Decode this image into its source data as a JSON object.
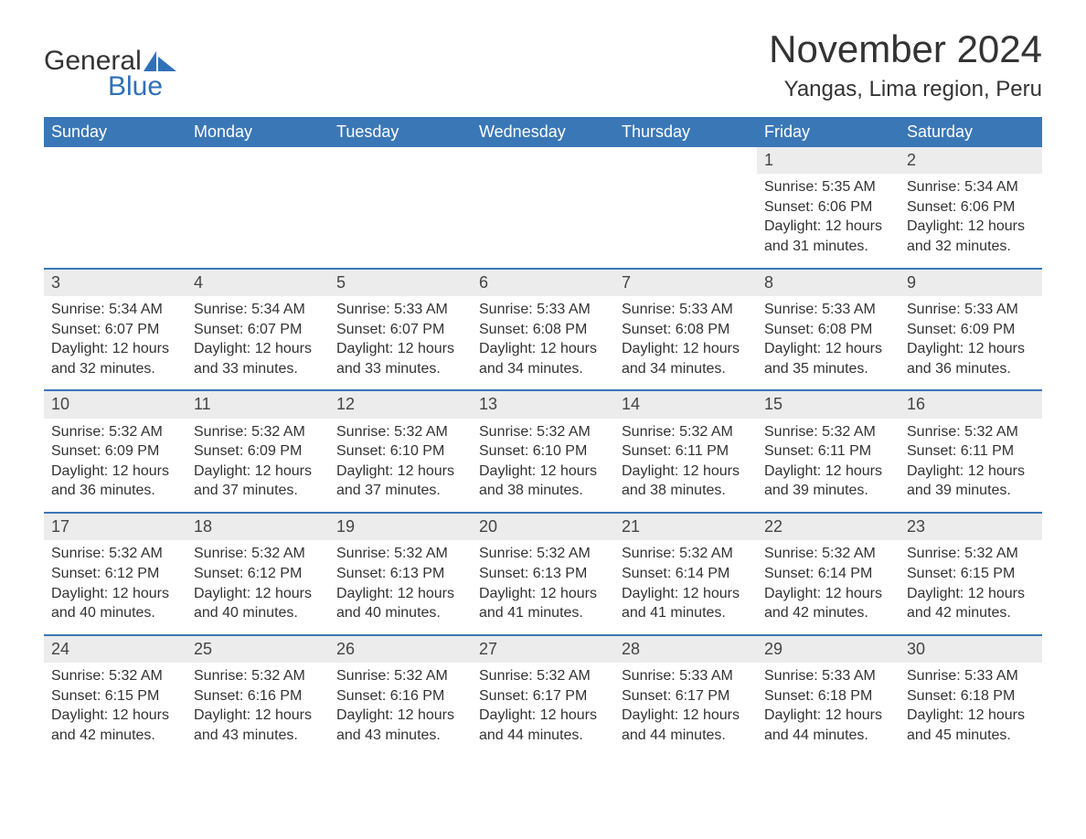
{
  "brand": {
    "word1": "General",
    "word2": "Blue",
    "accent_color": "#2f71b8"
  },
  "header": {
    "month_title": "November 2024",
    "location": "Yangas, Lima region, Peru"
  },
  "calendar": {
    "header_bg": "#3a77b7",
    "header_text_color": "#ffffff",
    "week_border_color": "#3a77b7",
    "daynum_bg": "#ececec",
    "text_color": "#333333",
    "background_color": "#ffffff",
    "weekday_fontsize": 18,
    "body_fontsize": 16,
    "weekdays": [
      "Sunday",
      "Monday",
      "Tuesday",
      "Wednesday",
      "Thursday",
      "Friday",
      "Saturday"
    ],
    "weeks": [
      [
        null,
        null,
        null,
        null,
        null,
        {
          "day": "1",
          "sunrise": "Sunrise: 5:35 AM",
          "sunset": "Sunset: 6:06 PM",
          "daylight1": "Daylight: 12 hours",
          "daylight2": "and 31 minutes."
        },
        {
          "day": "2",
          "sunrise": "Sunrise: 5:34 AM",
          "sunset": "Sunset: 6:06 PM",
          "daylight1": "Daylight: 12 hours",
          "daylight2": "and 32 minutes."
        }
      ],
      [
        {
          "day": "3",
          "sunrise": "Sunrise: 5:34 AM",
          "sunset": "Sunset: 6:07 PM",
          "daylight1": "Daylight: 12 hours",
          "daylight2": "and 32 minutes."
        },
        {
          "day": "4",
          "sunrise": "Sunrise: 5:34 AM",
          "sunset": "Sunset: 6:07 PM",
          "daylight1": "Daylight: 12 hours",
          "daylight2": "and 33 minutes."
        },
        {
          "day": "5",
          "sunrise": "Sunrise: 5:33 AM",
          "sunset": "Sunset: 6:07 PM",
          "daylight1": "Daylight: 12 hours",
          "daylight2": "and 33 minutes."
        },
        {
          "day": "6",
          "sunrise": "Sunrise: 5:33 AM",
          "sunset": "Sunset: 6:08 PM",
          "daylight1": "Daylight: 12 hours",
          "daylight2": "and 34 minutes."
        },
        {
          "day": "7",
          "sunrise": "Sunrise: 5:33 AM",
          "sunset": "Sunset: 6:08 PM",
          "daylight1": "Daylight: 12 hours",
          "daylight2": "and 34 minutes."
        },
        {
          "day": "8",
          "sunrise": "Sunrise: 5:33 AM",
          "sunset": "Sunset: 6:08 PM",
          "daylight1": "Daylight: 12 hours",
          "daylight2": "and 35 minutes."
        },
        {
          "day": "9",
          "sunrise": "Sunrise: 5:33 AM",
          "sunset": "Sunset: 6:09 PM",
          "daylight1": "Daylight: 12 hours",
          "daylight2": "and 36 minutes."
        }
      ],
      [
        {
          "day": "10",
          "sunrise": "Sunrise: 5:32 AM",
          "sunset": "Sunset: 6:09 PM",
          "daylight1": "Daylight: 12 hours",
          "daylight2": "and 36 minutes."
        },
        {
          "day": "11",
          "sunrise": "Sunrise: 5:32 AM",
          "sunset": "Sunset: 6:09 PM",
          "daylight1": "Daylight: 12 hours",
          "daylight2": "and 37 minutes."
        },
        {
          "day": "12",
          "sunrise": "Sunrise: 5:32 AM",
          "sunset": "Sunset: 6:10 PM",
          "daylight1": "Daylight: 12 hours",
          "daylight2": "and 37 minutes."
        },
        {
          "day": "13",
          "sunrise": "Sunrise: 5:32 AM",
          "sunset": "Sunset: 6:10 PM",
          "daylight1": "Daylight: 12 hours",
          "daylight2": "and 38 minutes."
        },
        {
          "day": "14",
          "sunrise": "Sunrise: 5:32 AM",
          "sunset": "Sunset: 6:11 PM",
          "daylight1": "Daylight: 12 hours",
          "daylight2": "and 38 minutes."
        },
        {
          "day": "15",
          "sunrise": "Sunrise: 5:32 AM",
          "sunset": "Sunset: 6:11 PM",
          "daylight1": "Daylight: 12 hours",
          "daylight2": "and 39 minutes."
        },
        {
          "day": "16",
          "sunrise": "Sunrise: 5:32 AM",
          "sunset": "Sunset: 6:11 PM",
          "daylight1": "Daylight: 12 hours",
          "daylight2": "and 39 minutes."
        }
      ],
      [
        {
          "day": "17",
          "sunrise": "Sunrise: 5:32 AM",
          "sunset": "Sunset: 6:12 PM",
          "daylight1": "Daylight: 12 hours",
          "daylight2": "and 40 minutes."
        },
        {
          "day": "18",
          "sunrise": "Sunrise: 5:32 AM",
          "sunset": "Sunset: 6:12 PM",
          "daylight1": "Daylight: 12 hours",
          "daylight2": "and 40 minutes."
        },
        {
          "day": "19",
          "sunrise": "Sunrise: 5:32 AM",
          "sunset": "Sunset: 6:13 PM",
          "daylight1": "Daylight: 12 hours",
          "daylight2": "and 40 minutes."
        },
        {
          "day": "20",
          "sunrise": "Sunrise: 5:32 AM",
          "sunset": "Sunset: 6:13 PM",
          "daylight1": "Daylight: 12 hours",
          "daylight2": "and 41 minutes."
        },
        {
          "day": "21",
          "sunrise": "Sunrise: 5:32 AM",
          "sunset": "Sunset: 6:14 PM",
          "daylight1": "Daylight: 12 hours",
          "daylight2": "and 41 minutes."
        },
        {
          "day": "22",
          "sunrise": "Sunrise: 5:32 AM",
          "sunset": "Sunset: 6:14 PM",
          "daylight1": "Daylight: 12 hours",
          "daylight2": "and 42 minutes."
        },
        {
          "day": "23",
          "sunrise": "Sunrise: 5:32 AM",
          "sunset": "Sunset: 6:15 PM",
          "daylight1": "Daylight: 12 hours",
          "daylight2": "and 42 minutes."
        }
      ],
      [
        {
          "day": "24",
          "sunrise": "Sunrise: 5:32 AM",
          "sunset": "Sunset: 6:15 PM",
          "daylight1": "Daylight: 12 hours",
          "daylight2": "and 42 minutes."
        },
        {
          "day": "25",
          "sunrise": "Sunrise: 5:32 AM",
          "sunset": "Sunset: 6:16 PM",
          "daylight1": "Daylight: 12 hours",
          "daylight2": "and 43 minutes."
        },
        {
          "day": "26",
          "sunrise": "Sunrise: 5:32 AM",
          "sunset": "Sunset: 6:16 PM",
          "daylight1": "Daylight: 12 hours",
          "daylight2": "and 43 minutes."
        },
        {
          "day": "27",
          "sunrise": "Sunrise: 5:32 AM",
          "sunset": "Sunset: 6:17 PM",
          "daylight1": "Daylight: 12 hours",
          "daylight2": "and 44 minutes."
        },
        {
          "day": "28",
          "sunrise": "Sunrise: 5:33 AM",
          "sunset": "Sunset: 6:17 PM",
          "daylight1": "Daylight: 12 hours",
          "daylight2": "and 44 minutes."
        },
        {
          "day": "29",
          "sunrise": "Sunrise: 5:33 AM",
          "sunset": "Sunset: 6:18 PM",
          "daylight1": "Daylight: 12 hours",
          "daylight2": "and 44 minutes."
        },
        {
          "day": "30",
          "sunrise": "Sunrise: 5:33 AM",
          "sunset": "Sunset: 6:18 PM",
          "daylight1": "Daylight: 12 hours",
          "daylight2": "and 45 minutes."
        }
      ]
    ]
  }
}
